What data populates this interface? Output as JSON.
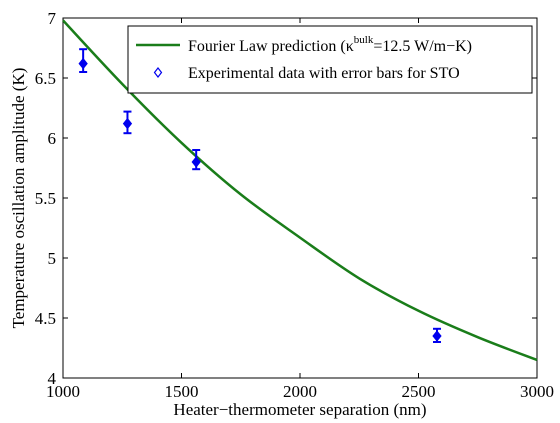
{
  "chart_data": {
    "type": "line",
    "xlabel": "Heater−thermometer separation (nm)",
    "ylabel": "Temperature oscillation amplitude (K)",
    "xlim": [
      1000,
      3000
    ],
    "ylim": [
      4,
      7
    ],
    "xticks": [
      "1000",
      "1500",
      "2000",
      "2500",
      "3000"
    ],
    "yticks": [
      "4",
      "4.5",
      "5",
      "5.5",
      "6",
      "6.5",
      "7"
    ],
    "grid": false,
    "legend_position": "top-right",
    "series": [
      {
        "name": "Fourier Law prediction (κ^bulk=12.5 W/m−K)",
        "legend_main": "Fourier Law prediction (κ",
        "legend_sup": "bulk",
        "legend_tail": "=12.5 W/m−K)",
        "kind": "line",
        "color": "#1a7d1a",
        "x": [
          1000,
          1250,
          1500,
          1750,
          2000,
          2250,
          2500,
          2750,
          3000
        ],
        "y": [
          6.98,
          6.45,
          5.96,
          5.53,
          5.17,
          4.83,
          4.56,
          4.34,
          4.15
        ]
      },
      {
        "name": "Experimental data with error bars for STO",
        "kind": "scatter",
        "marker": "diamond",
        "color": "#0000ee",
        "x": [
          1085,
          1272,
          1562,
          2578
        ],
        "y": [
          6.62,
          6.12,
          5.8,
          4.35
        ],
        "err_low": [
          0.07,
          0.08,
          0.06,
          0.05
        ],
        "err_high": [
          0.12,
          0.1,
          0.1,
          0.06
        ]
      }
    ]
  }
}
